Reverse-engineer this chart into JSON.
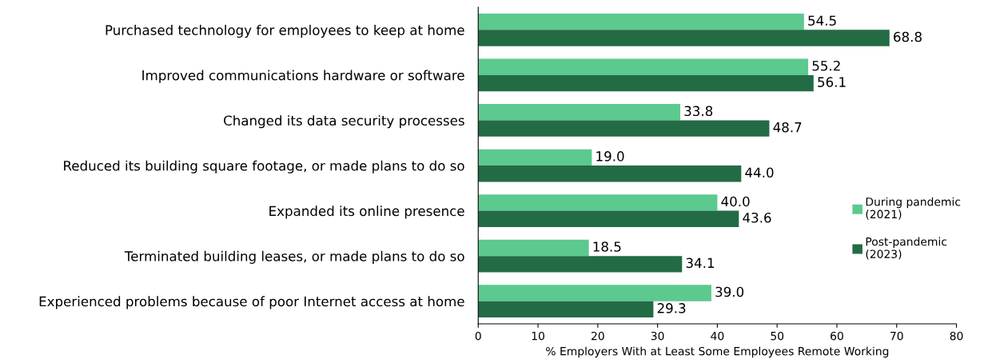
{
  "chart_data": {
    "type": "bar",
    "orientation": "horizontal",
    "xlabel": "% Employers With at Least Some Employees Remote Working",
    "categories": [
      "Purchased technology for employees to keep at home",
      "Improved communications hardware or software",
      "Changed its data security processes",
      "Reduced its building square footage, or made plans to do so",
      "Expanded its online presence",
      "Terminated building leases, or made plans to do so",
      "Experienced problems because of poor Internet access at home"
    ],
    "series": [
      {
        "name": "During pandemic\n(2021)",
        "color": "#5cc98f",
        "values": [
          54.5,
          55.2,
          33.8,
          19.0,
          40.0,
          18.5,
          39.0
        ],
        "value_labels": [
          "54.5",
          "55.2",
          "33.8",
          "19.0",
          "40.0",
          "18.5",
          "39.0"
        ]
      },
      {
        "name": "Post-pandemic\n(2023)",
        "color": "#236b45",
        "values": [
          68.8,
          56.1,
          48.7,
          44.0,
          43.6,
          34.1,
          29.3
        ],
        "value_labels": [
          "68.8",
          "56.1",
          "48.7",
          "44.0",
          "43.6",
          "34.1",
          "29.3"
        ]
      }
    ],
    "xlim": [
      0,
      80
    ],
    "xticks": [
      0,
      10,
      20,
      30,
      40,
      50,
      60,
      70,
      80
    ],
    "grid": false,
    "legend": "right"
  }
}
